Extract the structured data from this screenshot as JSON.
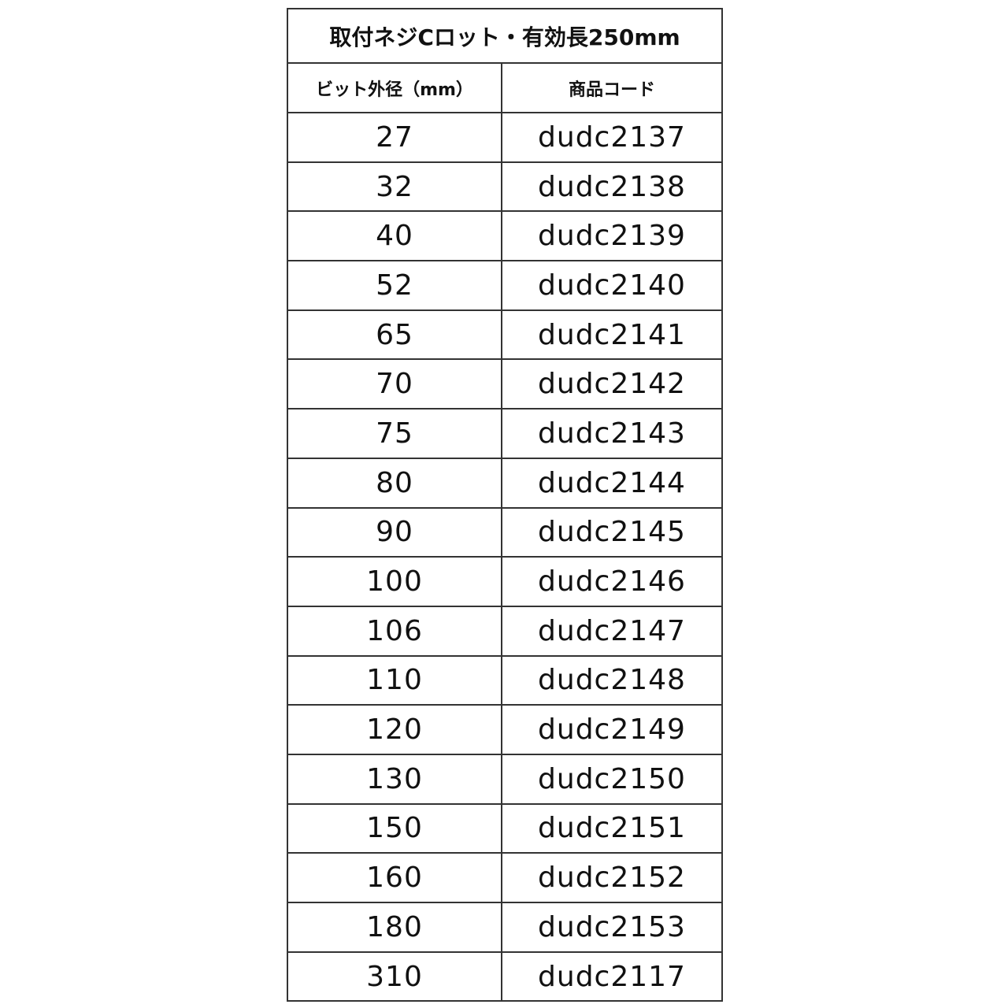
{
  "title": "取付ネジCロット・有効長250mm",
  "headers": [
    "ビット外径（mm）",
    "商品コード"
  ],
  "rows": [
    [
      "27",
      "dudc2137"
    ],
    [
      "32",
      "dudc2138"
    ],
    [
      "40",
      "dudc2139"
    ],
    [
      "52",
      "dudc2140"
    ],
    [
      "65",
      "dudc2141"
    ],
    [
      "70",
      "dudc2142"
    ],
    [
      "75",
      "dudc2143"
    ],
    [
      "80",
      "dudc2144"
    ],
    [
      "90",
      "dudc2145"
    ],
    [
      "100",
      "dudc2146"
    ],
    [
      "106",
      "dudc2147"
    ],
    [
      "110",
      "dudc2148"
    ],
    [
      "120",
      "dudc2149"
    ],
    [
      "130",
      "dudc2150"
    ],
    [
      "150",
      "dudc2151"
    ],
    [
      "160",
      "dudc2152"
    ],
    [
      "180",
      "dudc2153"
    ],
    [
      "310",
      "dudc2117"
    ]
  ]
}
